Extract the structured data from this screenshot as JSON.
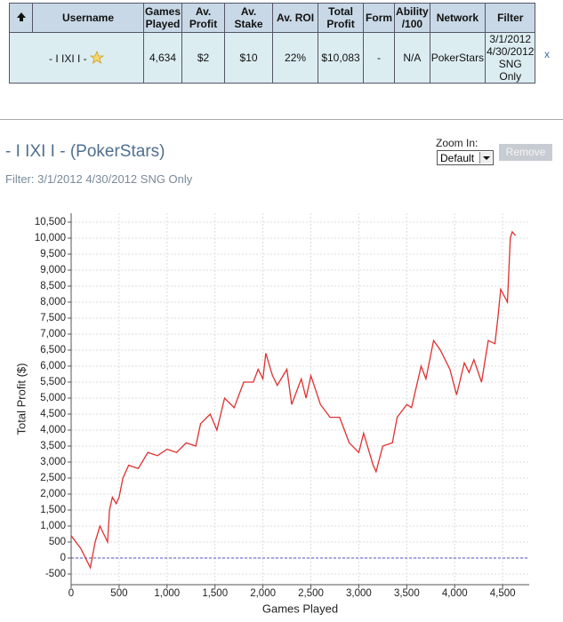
{
  "table": {
    "headers": [
      "Username",
      "Games Played",
      "Av. Profit",
      "Av. Stake",
      "Av. ROI",
      "Total Profit",
      "Form",
      "Ability /100",
      "Network",
      "Filter"
    ],
    "rows": [
      [
        "- I IXI I -",
        "4,634",
        "$2",
        "$10",
        "22%",
        "$10,083",
        "-",
        "N/A",
        "PokerStars",
        "3/1/2012 4/30/2012 SNG Only"
      ]
    ],
    "close": "x"
  },
  "profile": {
    "title": "- I IXI I - (PokerStars)",
    "filter": "Filter: 3/1/2012 4/30/2012 SNG Only"
  },
  "controls": {
    "zoom_label": "Zoom In:",
    "zoom_value": "Default",
    "remove": "Remove"
  },
  "chart_data": {
    "type": "line",
    "x_label": "Games Played",
    "y_label": "Total Profit ($)",
    "x": [
      0,
      100,
      200,
      250,
      300,
      380,
      400,
      430,
      470,
      500,
      540,
      600,
      700,
      800,
      900,
      1000,
      1100,
      1200,
      1300,
      1350,
      1450,
      1520,
      1600,
      1700,
      1800,
      1900,
      1950,
      2000,
      2030,
      2100,
      2150,
      2250,
      2300,
      2400,
      2450,
      2500,
      2600,
      2700,
      2800,
      2900,
      3000,
      3050,
      3150,
      3180,
      3250,
      3350,
      3400,
      3500,
      3550,
      3650,
      3700,
      3780,
      3850,
      3950,
      4020,
      4100,
      4150,
      4200,
      4280,
      4350,
      4420,
      4450,
      4480,
      4550,
      4580,
      4600,
      4634
    ],
    "series": [
      {
        "name": "Total Profit",
        "color": "#e03030",
        "values": [
          700,
          300,
          -300,
          500,
          1000,
          500,
          1500,
          1900,
          1700,
          1900,
          2500,
          2900,
          2800,
          3300,
          3200,
          3400,
          3300,
          3600,
          3500,
          4200,
          4500,
          4000,
          5000,
          4700,
          5500,
          5500,
          5900,
          5600,
          6400,
          5700,
          5400,
          5900,
          4800,
          5600,
          5000,
          5700,
          4800,
          4400,
          4400,
          3600,
          3300,
          3900,
          2900,
          2700,
          3500,
          3600,
          4400,
          4800,
          4700,
          6000,
          5600,
          6800,
          6500,
          5900,
          5100,
          6100,
          5800,
          6200,
          5500,
          6800,
          6700,
          7500,
          8400,
          8000,
          10000,
          10200,
          10083
        ]
      }
    ],
    "xlim": [
      0,
      4777
    ],
    "ylim": [
      -833,
      10778
    ],
    "xticks": [
      0,
      500,
      {
        "value": 1000,
        "label": "1,000"
      },
      {
        "value": 1500,
        "label": "1,500"
      },
      {
        "value": 2000,
        "label": "2,000"
      },
      {
        "value": 2500,
        "label": "2,500"
      },
      {
        "value": 3000,
        "label": "3,000"
      },
      {
        "value": 3500,
        "label": "3,500"
      },
      {
        "value": 4000,
        "label": "4,000"
      },
      {
        "value": 4500,
        "label": "4,500"
      }
    ],
    "yticks": [
      -500,
      0,
      500,
      {
        "value": 1000,
        "label": "1,000"
      },
      {
        "value": 1500,
        "label": "1,500"
      },
      {
        "value": 2000,
        "label": "2,000"
      },
      {
        "value": 2500,
        "label": "2,500"
      },
      {
        "value": 3000,
        "label": "3,000"
      },
      {
        "value": 3500,
        "label": "3,500"
      },
      {
        "value": 4000,
        "label": "4,000"
      },
      {
        "value": 4500,
        "label": "4,500"
      },
      {
        "value": 5000,
        "label": "5,000"
      },
      {
        "value": 5500,
        "label": "5,500"
      },
      {
        "value": 6000,
        "label": "6,000"
      },
      {
        "value": 6500,
        "label": "6,500"
      },
      {
        "value": 7000,
        "label": "7,000"
      },
      {
        "value": 7500,
        "label": "7,500"
      },
      {
        "value": 8000,
        "label": "8,000"
      },
      {
        "value": 8500,
        "label": "8,500"
      },
      {
        "value": 9000,
        "label": "9,000"
      },
      {
        "value": 9500,
        "label": "9,500"
      },
      {
        "value": 10000,
        "label": "10,000"
      },
      {
        "value": 10500,
        "label": "10,500"
      }
    ],
    "grid": true,
    "zero_line_color": "#5050c0"
  }
}
